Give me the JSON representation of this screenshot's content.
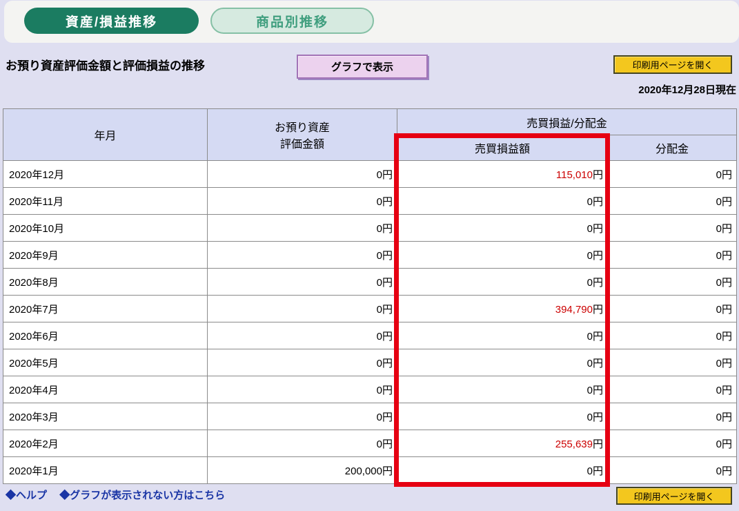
{
  "tabs": {
    "asset_pl_tab": "資産/損益推移",
    "by_product_tab": "商品別推移"
  },
  "toolbar": {
    "title": "お預り資産評価金額と評価損益の推移",
    "graph_button": "グラフで表示",
    "print_button": "印刷用ページを開く",
    "as_of_date": "2020年12月28日現在"
  },
  "table": {
    "headers": {
      "month": "年月",
      "asset_line1": "お預り資産",
      "asset_line2": "評価金額",
      "pl_group": "売買損益/分配金",
      "pl": "売買損益額",
      "dividend": "分配金"
    },
    "currency_suffix": "円",
    "rows": [
      {
        "month": "2020年12月",
        "asset": "0",
        "pl": "115,010",
        "pl_red": true,
        "dividend": "0"
      },
      {
        "month": "2020年11月",
        "asset": "0",
        "pl": "0",
        "pl_red": false,
        "dividend": "0"
      },
      {
        "month": "2020年10月",
        "asset": "0",
        "pl": "0",
        "pl_red": false,
        "dividend": "0"
      },
      {
        "month": "2020年9月",
        "asset": "0",
        "pl": "0",
        "pl_red": false,
        "dividend": "0"
      },
      {
        "month": "2020年8月",
        "asset": "0",
        "pl": "0",
        "pl_red": false,
        "dividend": "0"
      },
      {
        "month": "2020年7月",
        "asset": "0",
        "pl": "394,790",
        "pl_red": true,
        "dividend": "0"
      },
      {
        "month": "2020年6月",
        "asset": "0",
        "pl": "0",
        "pl_red": false,
        "dividend": "0"
      },
      {
        "month": "2020年5月",
        "asset": "0",
        "pl": "0",
        "pl_red": false,
        "dividend": "0"
      },
      {
        "month": "2020年4月",
        "asset": "0",
        "pl": "0",
        "pl_red": false,
        "dividend": "0"
      },
      {
        "month": "2020年3月",
        "asset": "0",
        "pl": "0",
        "pl_red": false,
        "dividend": "0"
      },
      {
        "month": "2020年2月",
        "asset": "0",
        "pl": "255,639",
        "pl_red": true,
        "dividend": "0"
      },
      {
        "month": "2020年1月",
        "asset": "200,000",
        "pl": "0",
        "pl_red": false,
        "dividend": "0"
      }
    ]
  },
  "footer": {
    "help_link": "◆ヘルプ",
    "graph_help_link": "◆グラフが表示されない方はこちら",
    "print_button": "印刷用ページを開く"
  },
  "colors": {
    "accent_green": "#1b7c61",
    "inactive_tab_green": "#d6eae0",
    "highlight_red": "#e60012",
    "negative_red": "#cc0000",
    "button_yellow": "#f3c71e",
    "graph_button_purple": "#ecd2ee",
    "link_blue": "#1a35a5",
    "header_cell_blue": "#d5daf3",
    "page_lavender": "#dfdff1"
  }
}
